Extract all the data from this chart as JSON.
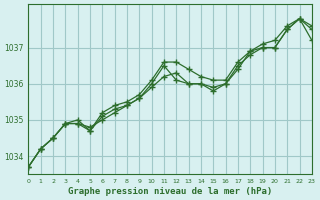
{
  "title": "Graphe pression niveau de la mer (hPa)",
  "bg_color": "#d8f0f0",
  "grid_color": "#a0c8c8",
  "line_color": "#2d6e2d",
  "marker_color": "#2d6e2d",
  "xlim": [
    0,
    23
  ],
  "ylim": [
    1033.5,
    1038.2
  ],
  "yticks": [
    1034,
    1035,
    1036,
    1037
  ],
  "xticks": [
    0,
    1,
    2,
    3,
    4,
    5,
    6,
    7,
    8,
    9,
    10,
    11,
    12,
    13,
    14,
    15,
    16,
    17,
    18,
    19,
    20,
    21,
    22,
    23
  ],
  "series1": [
    1033.7,
    1034.2,
    1034.5,
    1034.9,
    1034.9,
    1034.8,
    1035.0,
    1035.2,
    1035.4,
    1035.6,
    1036.0,
    1036.5,
    1036.1,
    1036.0,
    1036.0,
    1035.9,
    1036.0,
    1036.5,
    1036.8,
    1037.0,
    1037.0,
    1037.5,
    1037.8,
    1037.6
  ],
  "series2": [
    1033.7,
    1034.2,
    1034.5,
    1034.9,
    1035.0,
    1034.7,
    1035.2,
    1035.4,
    1035.5,
    1035.7,
    1036.1,
    1036.6,
    1036.6,
    1036.4,
    1036.2,
    1036.1,
    1036.1,
    1036.6,
    1036.9,
    1037.1,
    1037.2,
    1037.6,
    1037.8,
    1037.5
  ],
  "series3": [
    1033.7,
    1034.2,
    1034.5,
    1034.9,
    1034.9,
    1034.7,
    1035.1,
    1035.3,
    1035.4,
    1035.6,
    1035.9,
    1036.2,
    1036.3,
    1036.0,
    1036.0,
    1035.8,
    1036.0,
    1036.4,
    1036.9,
    1037.0,
    1037.0,
    1037.5,
    1037.8,
    1037.2
  ]
}
